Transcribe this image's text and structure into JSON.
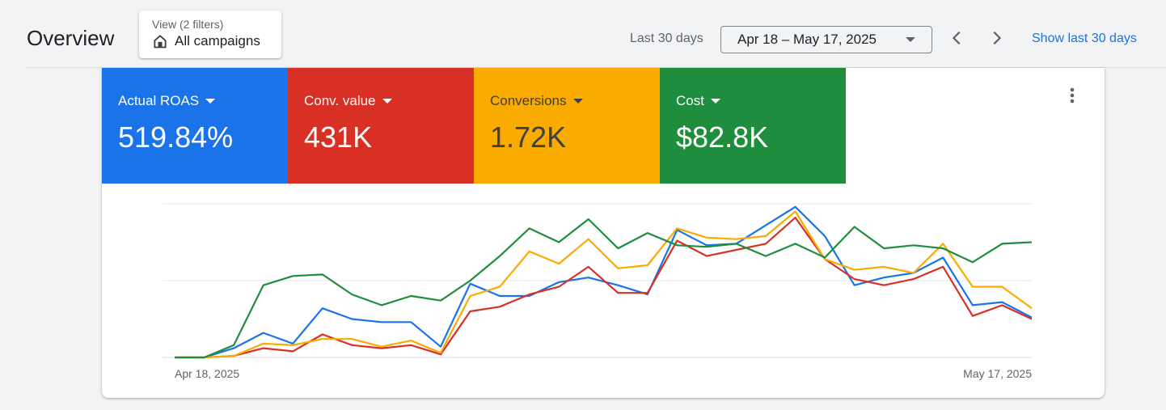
{
  "header": {
    "title": "Overview",
    "view_filter": {
      "label": "View (2 filters)",
      "value": "All campaigns",
      "icon": "building-icon"
    },
    "period_label": "Last 30 days",
    "date_range": "Apr 18 – May 17, 2025",
    "show_link": "Show last 30 days"
  },
  "metrics": [
    {
      "label": "Actual ROAS",
      "value": "519.84%",
      "color": "#1a73e8"
    },
    {
      "label": "Conv. value",
      "value": "431K",
      "color": "#d93025"
    },
    {
      "label": "Conversions",
      "value": "1.72K",
      "color": "#f9ab00"
    },
    {
      "label": "Cost",
      "value": "$82.8K",
      "color": "#1e8e3e"
    }
  ],
  "chart_data": {
    "type": "line",
    "x_labels": [
      "Apr 18, 2025",
      "May 17, 2025"
    ],
    "y_range": [
      0,
      100
    ],
    "grid": true,
    "series": [
      {
        "metric": "Actual ROAS",
        "color": "#1a73e8",
        "values": [
          0,
          0,
          6,
          16,
          9,
          32,
          25,
          23,
          23,
          7,
          48,
          40,
          40,
          49,
          52,
          47,
          41,
          83,
          73,
          74,
          86,
          98,
          79,
          47,
          52,
          55,
          65,
          34,
          36,
          26
        ]
      },
      {
        "metric": "Conv. value",
        "color": "#d93025",
        "values": [
          0,
          0,
          1,
          6,
          4,
          15,
          8,
          6,
          8,
          2,
          30,
          33,
          41,
          46,
          59,
          42,
          42,
          76,
          66,
          70,
          74,
          91,
          64,
          51,
          47,
          51,
          59,
          27,
          34,
          25
        ]
      },
      {
        "metric": "Conversions",
        "color": "#f9ab00",
        "values": [
          0,
          0,
          1,
          9,
          8,
          12,
          12,
          7,
          11,
          3,
          40,
          46,
          69,
          61,
          77,
          58,
          60,
          84,
          78,
          77,
          79,
          95,
          64,
          57,
          59,
          55,
          74,
          46,
          46,
          32
        ]
      },
      {
        "metric": "Cost",
        "color": "#1e8e3e",
        "values": [
          0,
          0,
          8,
          47,
          53,
          54,
          41,
          34,
          40,
          37,
          50,
          66,
          84,
          75,
          90,
          71,
          81,
          73,
          72,
          74,
          66,
          74,
          65,
          85,
          71,
          73,
          71,
          62,
          74,
          75
        ]
      }
    ]
  }
}
